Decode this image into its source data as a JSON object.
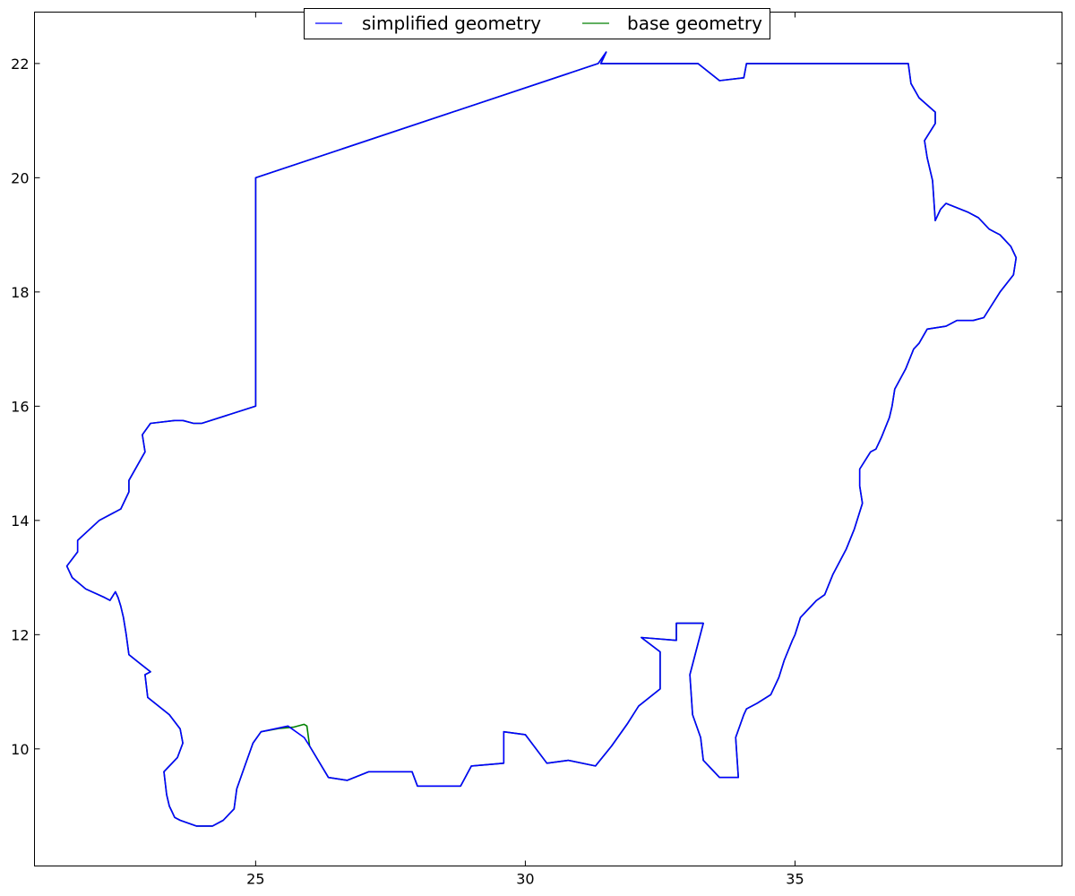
{
  "chart_data": {
    "type": "line",
    "title": "",
    "xlabel": "",
    "ylabel": "",
    "xlim": [
      20.9,
      39.95
    ],
    "ylim": [
      7.95,
      22.9
    ],
    "xticks": [
      25,
      30,
      35
    ],
    "yticks": [
      10,
      12,
      14,
      16,
      18,
      20,
      22
    ],
    "grid": false,
    "legend": {
      "position": "top-center",
      "columns": 2
    },
    "series": [
      {
        "name": "simplified geometry",
        "color": "#0000ff",
        "x": [
          24.0,
          25.0,
          25.0,
          31.35,
          31.5,
          31.4,
          33.2,
          33.6,
          34.05,
          34.1,
          37.1,
          37.15,
          37.3,
          37.6,
          37.6,
          37.4,
          37.45,
          37.55,
          37.6,
          37.7,
          37.8,
          38.2,
          38.4,
          38.6,
          38.7,
          38.8,
          39.0,
          39.1,
          39.05,
          38.8,
          38.5,
          38.3,
          38.0,
          37.8,
          37.45,
          37.3,
          37.2,
          37.05,
          36.85,
          36.8,
          36.75,
          36.6,
          36.5,
          36.4,
          36.2,
          36.2,
          36.25,
          36.1,
          35.95,
          35.7,
          35.55,
          35.4,
          35.1,
          35.0,
          34.95,
          34.8,
          34.7,
          34.55,
          34.3,
          34.1,
          34.05,
          33.9,
          33.95,
          33.6,
          33.3,
          33.25,
          33.1,
          33.05,
          33.3,
          32.8,
          32.8,
          32.15,
          32.5,
          32.5,
          32.1,
          31.9,
          31.6,
          31.3,
          30.8,
          30.4,
          30.0,
          29.6,
          29.6,
          29.0,
          28.8,
          28.0,
          27.9,
          27.1,
          26.7,
          26.35,
          26.0,
          25.9,
          25.6,
          25.1,
          24.95,
          24.8,
          24.65,
          24.6,
          24.4,
          24.2,
          23.9,
          23.6,
          23.5,
          23.45,
          23.4,
          23.35,
          23.3,
          23.55,
          23.65,
          23.6,
          23.4,
          23.0,
          22.95,
          23.05,
          22.85,
          22.65,
          22.6,
          22.55,
          22.5,
          22.45,
          22.4,
          22.3,
          22.2,
          21.85,
          21.6,
          21.5,
          21.7,
          21.7,
          22.1,
          22.5,
          22.65,
          22.65,
          22.95,
          22.9,
          23.05,
          23.5,
          23.65,
          23.85,
          24.0,
          24.0
        ],
        "y": [
          15.7,
          16.0,
          20.0,
          22.0,
          22.2,
          22.0,
          22.0,
          21.7,
          21.75,
          22.0,
          22.0,
          21.65,
          21.4,
          21.15,
          20.95,
          20.65,
          20.35,
          19.95,
          19.25,
          19.45,
          19.55,
          19.4,
          19.3,
          19.1,
          19.05,
          19.0,
          18.8,
          18.6,
          18.3,
          18.0,
          17.55,
          17.5,
          17.5,
          17.4,
          17.35,
          17.1,
          17.0,
          16.65,
          16.3,
          16.0,
          15.8,
          15.45,
          15.25,
          15.2,
          14.9,
          14.6,
          14.3,
          13.85,
          13.5,
          13.05,
          12.7,
          12.6,
          12.3,
          12.0,
          11.9,
          11.55,
          11.25,
          10.95,
          10.8,
          10.7,
          10.6,
          10.2,
          9.5,
          9.5,
          9.8,
          10.2,
          10.6,
          11.3,
          12.2,
          12.2,
          11.9,
          11.95,
          11.7,
          11.05,
          10.75,
          10.45,
          10.05,
          9.7,
          9.8,
          9.75,
          10.25,
          10.3,
          9.75,
          9.7,
          9.35,
          9.35,
          9.6,
          9.6,
          9.45,
          9.5,
          10.05,
          10.2,
          10.4,
          10.3,
          10.1,
          9.7,
          9.3,
          8.95,
          8.75,
          8.65,
          8.65,
          8.75,
          8.8,
          8.9,
          9.0,
          9.2,
          9.6,
          9.85,
          10.1,
          10.35,
          10.6,
          10.9,
          11.3,
          11.35,
          11.5,
          11.65,
          12.0,
          12.3,
          12.5,
          12.65,
          12.75,
          12.6,
          12.65,
          12.8,
          13.0,
          13.2,
          13.45,
          13.65,
          14.0,
          14.2,
          14.5,
          14.7,
          15.2,
          15.5,
          15.7,
          15.75,
          15.75,
          15.7,
          15.7,
          15.7
        ]
      },
      {
        "name": "base geometry",
        "color": "#008000",
        "x": [
          24.0,
          25.0,
          25.0,
          31.35,
          31.5,
          31.4,
          33.2,
          33.6,
          34.05,
          34.1,
          37.1,
          37.15,
          37.3,
          37.6,
          37.6,
          37.4,
          37.45,
          37.55,
          37.6,
          37.7,
          37.8,
          38.2,
          38.4,
          38.6,
          38.7,
          38.8,
          39.0,
          39.1,
          39.05,
          38.8,
          38.5,
          38.3,
          38.0,
          37.8,
          37.45,
          37.3,
          37.2,
          37.05,
          36.85,
          36.8,
          36.75,
          36.6,
          36.5,
          36.4,
          36.2,
          36.2,
          36.25,
          36.1,
          35.95,
          35.7,
          35.55,
          35.4,
          35.1,
          35.0,
          34.95,
          34.8,
          34.7,
          34.55,
          34.3,
          34.1,
          34.05,
          33.9,
          33.95,
          33.6,
          33.3,
          33.25,
          33.1,
          33.05,
          33.3,
          32.8,
          32.8,
          32.15,
          32.5,
          32.5,
          32.1,
          31.9,
          31.6,
          31.3,
          30.8,
          30.4,
          30.0,
          29.6,
          29.6,
          29.0,
          28.8,
          28.0,
          27.9,
          27.1,
          26.7,
          26.35,
          26.0,
          25.95,
          25.9,
          25.7,
          25.45,
          25.1,
          24.95,
          24.8,
          24.65,
          24.6,
          24.4,
          24.2,
          23.9,
          23.6,
          23.5,
          23.45,
          23.4,
          23.35,
          23.3,
          23.55,
          23.65,
          23.6,
          23.4,
          23.0,
          22.95,
          23.05,
          22.85,
          22.65,
          22.6,
          22.55,
          22.5,
          22.45,
          22.4,
          22.3,
          22.2,
          21.85,
          21.6,
          21.5,
          21.7,
          21.7,
          22.1,
          22.5,
          22.65,
          22.65,
          22.95,
          22.9,
          23.05,
          23.5,
          23.65,
          23.85,
          24.0,
          24.0
        ],
        "y": [
          15.7,
          16.0,
          20.0,
          22.0,
          22.2,
          22.0,
          22.0,
          21.7,
          21.75,
          22.0,
          22.0,
          21.65,
          21.4,
          21.15,
          20.95,
          20.65,
          20.35,
          19.95,
          19.25,
          19.45,
          19.55,
          19.4,
          19.3,
          19.1,
          19.05,
          19.0,
          18.8,
          18.6,
          18.3,
          18.0,
          17.55,
          17.5,
          17.5,
          17.4,
          17.35,
          17.1,
          17.0,
          16.65,
          16.3,
          16.0,
          15.8,
          15.45,
          15.25,
          15.2,
          14.9,
          14.6,
          14.3,
          13.85,
          13.5,
          13.05,
          12.7,
          12.6,
          12.3,
          12.0,
          11.9,
          11.55,
          11.25,
          10.95,
          10.8,
          10.7,
          10.6,
          10.2,
          9.5,
          9.5,
          9.8,
          10.2,
          10.6,
          11.3,
          12.2,
          12.2,
          11.9,
          11.95,
          11.7,
          11.05,
          10.75,
          10.45,
          10.05,
          9.7,
          9.8,
          9.75,
          10.25,
          10.3,
          9.75,
          9.7,
          9.35,
          9.35,
          9.6,
          9.6,
          9.45,
          9.5,
          10.05,
          10.4,
          10.43,
          10.38,
          10.36,
          10.3,
          10.1,
          9.7,
          9.3,
          8.95,
          8.75,
          8.65,
          8.65,
          8.75,
          8.8,
          8.9,
          9.0,
          9.2,
          9.6,
          9.85,
          10.1,
          10.35,
          10.6,
          10.9,
          11.3,
          11.35,
          11.5,
          11.65,
          12.0,
          12.3,
          12.5,
          12.65,
          12.75,
          12.6,
          12.65,
          12.8,
          13.0,
          13.2,
          13.45,
          13.65,
          14.0,
          14.2,
          14.5,
          14.7,
          15.2,
          15.5,
          15.7,
          15.75,
          15.75,
          15.7,
          15.7,
          15.7
        ]
      }
    ]
  }
}
